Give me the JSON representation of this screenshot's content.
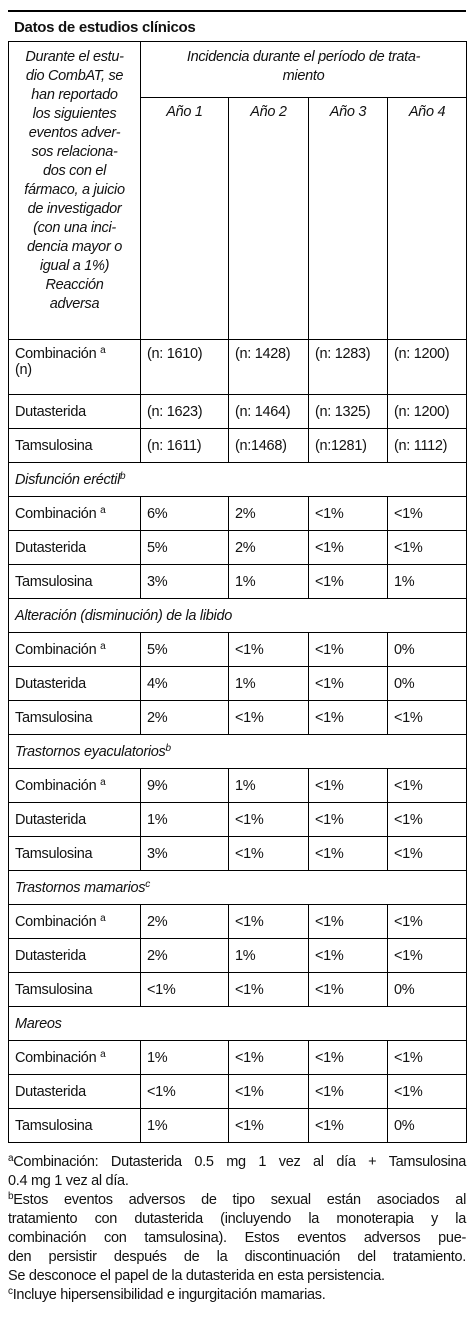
{
  "title": "Datos de estudios clínicos",
  "table": {
    "corner_lines": [
      "Durante el estu-",
      "dio CombAT, se",
      "han reportado",
      "los siguientes",
      "eventos adver-",
      "sos relaciona-",
      "dos con el",
      "fármaco, a juicio",
      "de investigador",
      "(con una inci-",
      "dencia mayor o",
      "igual a 1%)",
      "Reacción",
      "adversa"
    ],
    "group_header_lines": [
      "Incidencia durante el período de trata-",
      "miento"
    ],
    "years": [
      "Año 1",
      "Año 2",
      "Año 3",
      "Año 4"
    ],
    "count_rows": [
      {
        "label": "Combinación",
        "sup": "a",
        "suffix": "(n)",
        "values": [
          "(n: 1610)",
          "(n: 1428)",
          "(n: 1283)",
          "(n: 1200)"
        ]
      },
      {
        "label": "Dutasterida",
        "values": [
          "(n: 1623)",
          "(n: 1464)",
          "(n: 1325)",
          "(n: 1200)"
        ]
      },
      {
        "label": "Tamsulosina",
        "values": [
          "(n: 1611)",
          "(n:1468)",
          "(n:1281)",
          "(n: 1112)"
        ]
      }
    ],
    "sections": [
      {
        "title": "Disfunción eréctil",
        "sup": "b",
        "rows": [
          {
            "label": "Combinación",
            "sup": "a",
            "values": [
              "6%",
              "2%",
              "<1%",
              "<1%"
            ]
          },
          {
            "label": "Dutasterida",
            "values": [
              "5%",
              "2%",
              "<1%",
              "<1%"
            ]
          },
          {
            "label": "Tamsulosina",
            "values": [
              "3%",
              "1%",
              "<1%",
              "1%"
            ]
          }
        ]
      },
      {
        "title": "Alteración (disminución) de la libido",
        "rows": [
          {
            "label": "Combinación",
            "sup": "a",
            "values": [
              "5%",
              "<1%",
              "<1%",
              "0%"
            ]
          },
          {
            "label": "Dutasterida",
            "values": [
              "4%",
              "1%",
              "<1%",
              "0%"
            ]
          },
          {
            "label": "Tamsulosina",
            "values": [
              "2%",
              "<1%",
              "<1%",
              "<1%"
            ]
          }
        ]
      },
      {
        "title": "Trastornos eyaculatorios",
        "sup": "b",
        "rows": [
          {
            "label": "Combinación",
            "sup": "a",
            "values": [
              "9%",
              "1%",
              "<1%",
              "<1%"
            ]
          },
          {
            "label": "Dutasterida",
            "values": [
              "1%",
              "<1%",
              "<1%",
              "<1%"
            ]
          },
          {
            "label": "Tamsulosina",
            "values": [
              "3%",
              "<1%",
              "<1%",
              "<1%"
            ]
          }
        ]
      },
      {
        "title": "Trastornos mamarios",
        "sup": "c",
        "rows": [
          {
            "label": "Combinación",
            "sup": "a",
            "values": [
              "2%",
              "<1%",
              "<1%",
              "<1%"
            ]
          },
          {
            "label": "Dutasterida",
            "values": [
              "2%",
              "1%",
              "<1%",
              "<1%"
            ]
          },
          {
            "label": "Tamsulosina",
            "values": [
              "<1%",
              "<1%",
              "<1%",
              "0%"
            ]
          }
        ]
      },
      {
        "title": "Mareos",
        "rows": [
          {
            "label": "Combinación",
            "sup": "a",
            "values": [
              "1%",
              "<1%",
              "<1%",
              "<1%"
            ]
          },
          {
            "label": "Dutasterida",
            "values": [
              "<1%",
              "<1%",
              "<1%",
              "<1%"
            ]
          },
          {
            "label": "Tamsulosina",
            "values": [
              "1%",
              "<1%",
              "<1%",
              "0%"
            ]
          }
        ]
      }
    ]
  },
  "footnotes": [
    {
      "mark": "a",
      "lines": [
        "Combinación: Dutasterida 0.5 mg 1 vez al día + Tamsulosina",
        "0.4 mg 1 vez al día."
      ]
    },
    {
      "mark": "b",
      "lines": [
        "Estos eventos adversos de tipo sexual están asociados al",
        "tratamiento con dutasterida (incluyendo la monoterapia y la",
        "combinación con tamsulosina). Estos eventos adversos pue-",
        "den persistir después de la discontinuación del tratamiento.",
        "Se desconoce el papel de la dutasterida en esta persistencia."
      ]
    },
    {
      "mark": "c",
      "lines": [
        "Incluye hipersensibilidad e ingurgitación mamarias."
      ]
    }
  ]
}
